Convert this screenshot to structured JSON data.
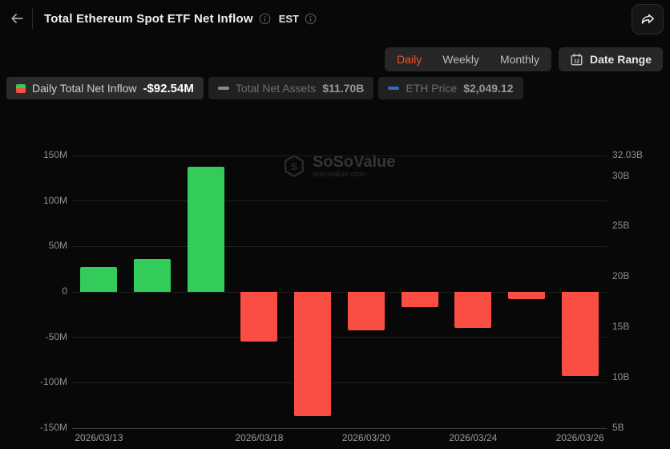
{
  "header": {
    "title": "Total Ethereum Spot ETF Net Inflow",
    "timezone": "EST"
  },
  "controls": {
    "tabs": [
      {
        "label": "Daily",
        "active": true
      },
      {
        "label": "Weekly",
        "active": false
      },
      {
        "label": "Monthly",
        "active": false
      }
    ],
    "date_range_label": "Date Range"
  },
  "legend": [
    {
      "label": "Daily Total Net Inflow",
      "value": "-$92.54M",
      "icon": "split-green-red-swatch",
      "active": true
    },
    {
      "label": "Total Net Assets",
      "value": "$11.70B",
      "icon": "gray-dash",
      "active": false
    },
    {
      "label": "ETH Price",
      "value": "$2,049.12",
      "icon": "blue-dash",
      "active": false
    }
  ],
  "watermark": {
    "name": "SoSoValue",
    "domain": "sosovalue.com"
  },
  "colors": {
    "positive": "#33cb5a",
    "negative": "#fa4d44",
    "accent": "#e8552e"
  },
  "chart_data": {
    "type": "bar",
    "title": "Total Ethereum Spot ETF Net Inflow",
    "series_name": "Daily Total Net Inflow (USD)",
    "values_musd": [
      27,
      36,
      138,
      -55,
      -137,
      -42,
      -17,
      -40,
      -8,
      -92.54
    ],
    "bar_color_rule": "green if positive, red if negative",
    "x_tick_labels": [
      {
        "slot": 0,
        "label": "2026/03/13"
      },
      {
        "slot": 3,
        "label": "2026/03/18"
      },
      {
        "slot": 5,
        "label": "2026/03/20"
      },
      {
        "slot": 7,
        "label": "2026/03/24"
      },
      {
        "slot": 9,
        "label": "2026/03/26"
      }
    ],
    "left_axis": {
      "tick_labels": [
        "150M",
        "100M",
        "50M",
        "0",
        "-50M",
        "-100M",
        "-150M"
      ],
      "min_musd": -150,
      "max_musd": 150
    },
    "right_axis": {
      "tick_labels": [
        "32.03B",
        "30B",
        "25B",
        "20B",
        "15B",
        "10B",
        "5B"
      ],
      "tick_values_b": [
        32.03,
        30,
        25,
        20,
        15,
        10,
        5
      ],
      "min_b": 5,
      "max_b": 32.03
    },
    "grid": true,
    "legend_position": "top-left"
  }
}
